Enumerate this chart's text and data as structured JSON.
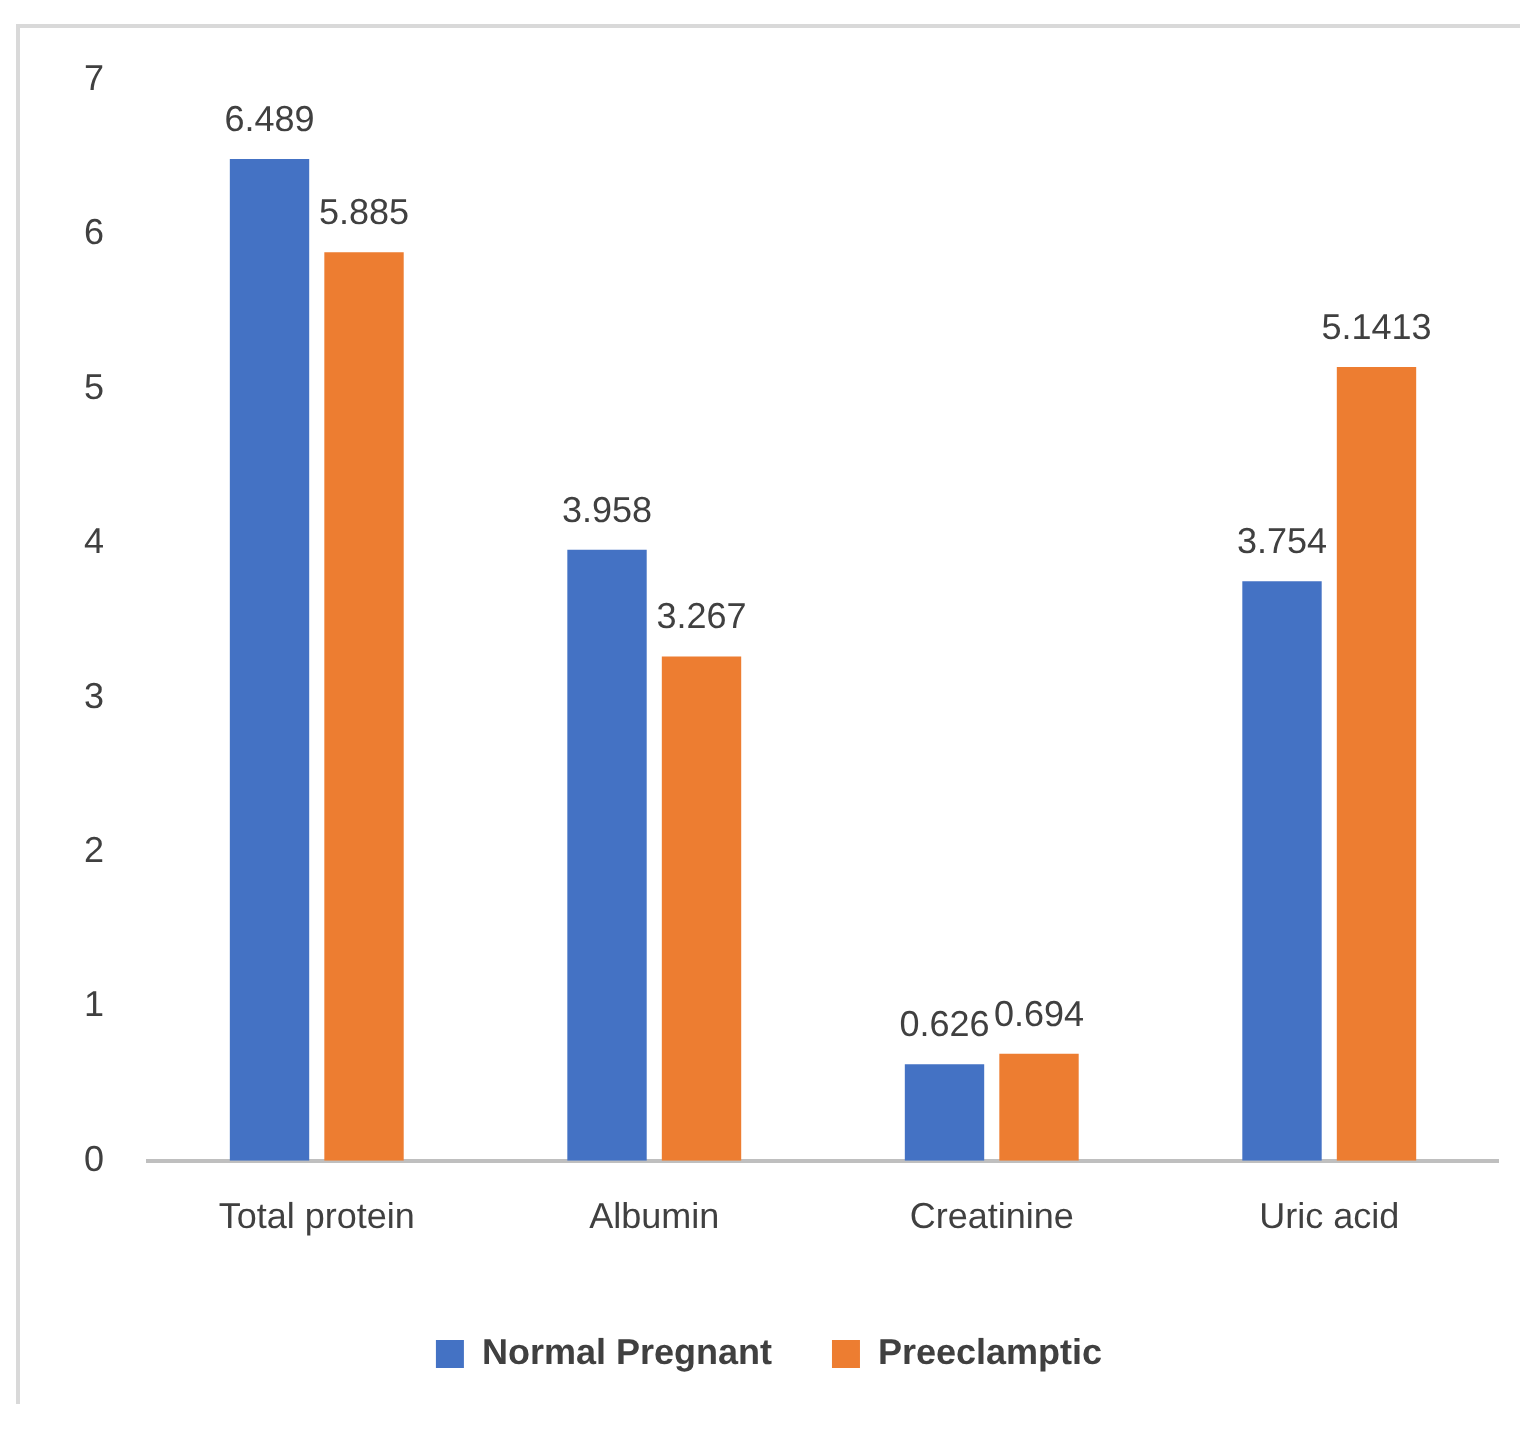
{
  "chart_data": {
    "type": "bar",
    "categories": [
      "Total protein",
      "Albumin",
      "Creatinine",
      "Uric acid"
    ],
    "series": [
      {
        "name": "Normal Pregnant",
        "color": "#4472c4",
        "values": [
          6.489,
          3.958,
          0.626,
          3.754
        ]
      },
      {
        "name": "Preeclamptic",
        "color": "#ed7d31",
        "values": [
          5.885,
          3.267,
          0.694,
          5.1413
        ]
      }
    ],
    "ylim": [
      0,
      7
    ],
    "yticks": [
      0,
      1,
      2,
      3,
      4,
      5,
      6,
      7
    ],
    "grid": false,
    "legend": "bottom",
    "data_labels": true
  }
}
